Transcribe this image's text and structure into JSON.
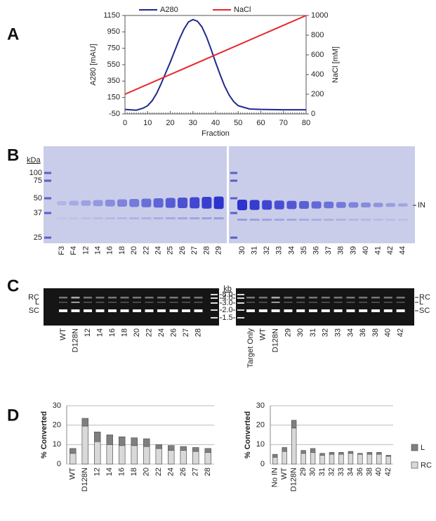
{
  "panel_labels": [
    "A",
    "B",
    "C",
    "D"
  ],
  "chart_data": [
    {
      "type": "line",
      "xlabel": "Fraction",
      "ylabel": "A280 [mAU]",
      "y2label": "NaCl [mM]",
      "xlim": [
        0,
        80
      ],
      "xticks": [
        0,
        10,
        20,
        30,
        40,
        50,
        60,
        70,
        80
      ],
      "ylim": [
        -50,
        1150
      ],
      "yticks": [
        -50,
        150,
        350,
        550,
        750,
        950,
        1150
      ],
      "y2lim": [
        0,
        1000
      ],
      "y2ticks": [
        0,
        200,
        400,
        600,
        800,
        1000
      ],
      "legend": "top",
      "series": [
        {
          "name": "A280",
          "color": "#1f2a8c",
          "x": [
            0,
            5,
            8,
            10,
            12,
            14,
            16,
            18,
            20,
            22,
            24,
            26,
            28,
            30,
            32,
            34,
            36,
            38,
            40,
            42,
            44,
            46,
            48,
            50,
            55,
            60,
            70,
            80
          ],
          "values": [
            5,
            -5,
            20,
            50,
            110,
            200,
            320,
            450,
            580,
            720,
            860,
            980,
            1070,
            1100,
            1080,
            1010,
            890,
            740,
            580,
            430,
            290,
            180,
            100,
            50,
            10,
            5,
            0,
            0
          ]
        },
        {
          "name": "NaCl",
          "color": "#e8262b",
          "axis": "y2",
          "x": [
            0,
            80
          ],
          "values": [
            200,
            1000
          ]
        }
      ]
    },
    {
      "type": "bar",
      "stacked": true,
      "ylabel": "% Converted",
      "ylim": [
        0,
        30
      ],
      "yticks": [
        0,
        10,
        20,
        30
      ],
      "grid": true,
      "categories": [
        "WT",
        "D128N",
        "12",
        "14",
        "16",
        "18",
        "20",
        "22",
        "24",
        "26",
        "27",
        "28"
      ],
      "series": [
        {
          "name": "RC",
          "color": "#d9d9d9",
          "values": [
            5.5,
            19.5,
            11.5,
            10,
            9.5,
            9.5,
            9,
            8,
            7,
            7,
            6.5,
            6
          ]
        },
        {
          "name": "L",
          "color": "#7f7f7f",
          "values": [
            2.5,
            4,
            5,
            5,
            4.5,
            4,
            4,
            2,
            2.5,
            2,
            2,
            2
          ]
        }
      ]
    },
    {
      "type": "bar",
      "stacked": true,
      "ylabel": "% Converted",
      "ylim": [
        0,
        30
      ],
      "yticks": [
        0,
        10,
        20,
        30
      ],
      "grid": true,
      "legend": "right",
      "categories": [
        "No IN",
        "WT",
        "D128N",
        "29",
        "30",
        "31",
        "32",
        "33",
        "34",
        "36",
        "38",
        "40",
        "42"
      ],
      "series": [
        {
          "name": "RC",
          "color": "#d9d9d9",
          "values": [
            3.5,
            6.5,
            18.5,
            5.5,
            6,
            4.5,
            5,
            5,
            5.5,
            5,
            5,
            5,
            4
          ]
        },
        {
          "name": "L",
          "color": "#7f7f7f",
          "values": [
            1.5,
            2,
            4,
            1.5,
            2,
            1,
            1,
            1,
            1,
            0.5,
            1,
            1,
            0.5
          ]
        }
      ]
    }
  ],
  "gel_b": {
    "unit": "kDa",
    "markers": [
      100,
      75,
      50,
      37,
      25
    ],
    "left_lanes": [
      "F3",
      "F4",
      "12",
      "14",
      "16",
      "18",
      "20",
      "22",
      "24",
      "25",
      "26",
      "27",
      "28",
      "29"
    ],
    "right_lanes": [
      "30",
      "31",
      "32",
      "33",
      "34",
      "35",
      "36",
      "37",
      "38",
      "39",
      "40",
      "41",
      "42",
      "44"
    ],
    "band_label": "IN"
  },
  "gel_c": {
    "unit": "kb",
    "markers": [
      "8.0",
      "4.0",
      "3.0",
      "2.0",
      "1.5"
    ],
    "band_labels": [
      "RC",
      "L",
      "SC"
    ],
    "left_lanes": [
      "WT",
      "D128N",
      "12",
      "14",
      "16",
      "18",
      "20",
      "22",
      "24",
      "26",
      "27",
      "28"
    ],
    "right_lanes": [
      "Target Only",
      "WT",
      "D128N",
      "29",
      "30",
      "31",
      "32",
      "33",
      "34",
      "36",
      "38",
      "40",
      "42"
    ]
  }
}
